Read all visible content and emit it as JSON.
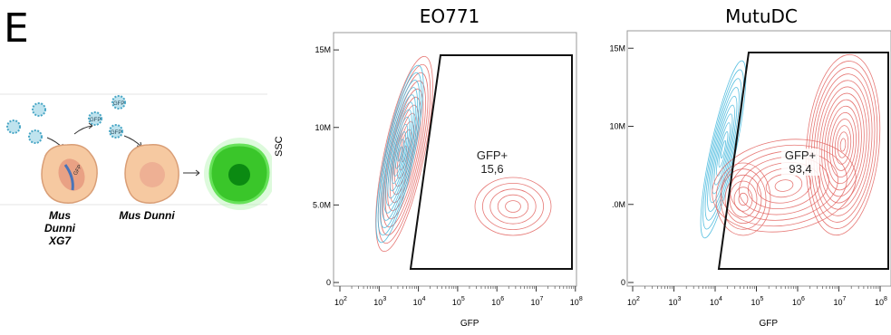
{
  "panel_letter": "E",
  "schematic": {
    "virus_label": "GFP",
    "cell_gene_label": "GFP",
    "cells": [
      {
        "label_line1": "Mus Dunni",
        "label_line2": "XG7"
      },
      {
        "label_line1": "Mus Dunni",
        "label_line2": ""
      }
    ]
  },
  "chart_data": [
    {
      "type": "scatter",
      "title": "EO771",
      "xlabel": "GFP",
      "ylabel": "SSC",
      "x_scale": "log",
      "x_ticks": [
        "10^2",
        "10^3",
        "10^4",
        "10^5",
        "10^6",
        "10^7",
        "10^8"
      ],
      "y_ticks": [
        "0",
        "5.0M",
        "10M",
        "15M"
      ],
      "ylim": [
        0,
        16000000
      ],
      "gate": {
        "name": "GFP+",
        "value": "15,6"
      }
    },
    {
      "type": "scatter",
      "title": "MutuDC",
      "xlabel": "GFP",
      "ylabel": "",
      "x_scale": "log",
      "x_ticks": [
        "10^2",
        "10^3",
        "10^4",
        "10^5",
        "10^6",
        "10^7",
        "10^8"
      ],
      "y_ticks": [
        "0",
        ".0M",
        "10M",
        "15M"
      ],
      "ylim": [
        0,
        16000000
      ],
      "gate": {
        "name": "GFP+",
        "value": "93,4"
      }
    }
  ],
  "colors": {
    "contour_blue": "#3fb6dc",
    "contour_red": "#e2605d",
    "gfp_green": "#3ac62a",
    "cell_fill": "#f6c9a1"
  }
}
